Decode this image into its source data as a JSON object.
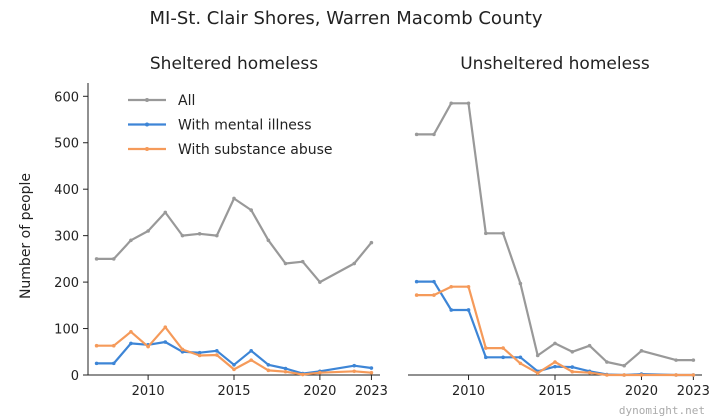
{
  "title": "MI-St. Clair Shores, Warren Macomb County",
  "watermark": "dynomight.net",
  "colors": {
    "All": "#999999",
    "With mental illness": "#3d85d6",
    "With substance abuse": "#f59a5a"
  },
  "chart_data": [
    {
      "type": "line",
      "title": "Sheltered homeless",
      "ylabel": "Number of people",
      "xlim": [
        2006.5,
        2023.5
      ],
      "ylim": [
        0,
        620
      ],
      "xticks": [
        2010,
        2015,
        2020,
        2023
      ],
      "yticks": [
        0,
        100,
        200,
        300,
        400,
        500,
        600
      ],
      "legend": "top-left",
      "x": [
        2007,
        2008,
        2009,
        2010,
        2011,
        2012,
        2013,
        2014,
        2015,
        2016,
        2017,
        2018,
        2019,
        2020,
        2022,
        2023
      ],
      "series": [
        {
          "name": "All",
          "values": [
            250,
            250,
            290,
            310,
            350,
            300,
            304,
            300,
            380,
            355,
            290,
            240,
            244,
            200,
            240,
            285
          ]
        },
        {
          "name": "With mental illness",
          "values": [
            25,
            25,
            68,
            65,
            71,
            50,
            48,
            52,
            22,
            52,
            22,
            14,
            3,
            8,
            20,
            15
          ]
        },
        {
          "name": "With substance abuse",
          "values": [
            63,
            63,
            93,
            61,
            103,
            55,
            42,
            43,
            12,
            32,
            10,
            7,
            1,
            5,
            8,
            5
          ]
        }
      ]
    },
    {
      "type": "line",
      "title": "Unsheltered homeless",
      "xlim": [
        2006.5,
        2023.5
      ],
      "ylim": [
        0,
        620
      ],
      "xticks": [
        2010,
        2015,
        2020,
        2023
      ],
      "x": [
        2007,
        2008,
        2009,
        2010,
        2011,
        2012,
        2013,
        2014,
        2015,
        2016,
        2017,
        2018,
        2019,
        2020,
        2022,
        2023
      ],
      "series": [
        {
          "name": "All",
          "values": [
            518,
            518,
            585,
            585,
            305,
            305,
            197,
            42,
            68,
            50,
            63,
            28,
            20,
            52,
            32,
            32
          ]
        },
        {
          "name": "With mental illness",
          "values": [
            201,
            201,
            140,
            140,
            38,
            38,
            38,
            8,
            18,
            17,
            8,
            1,
            0,
            2,
            0,
            0
          ]
        },
        {
          "name": "With substance abuse",
          "values": [
            172,
            172,
            190,
            190,
            58,
            58,
            25,
            4,
            28,
            7,
            5,
            0,
            0,
            0,
            0,
            0
          ]
        }
      ]
    }
  ]
}
